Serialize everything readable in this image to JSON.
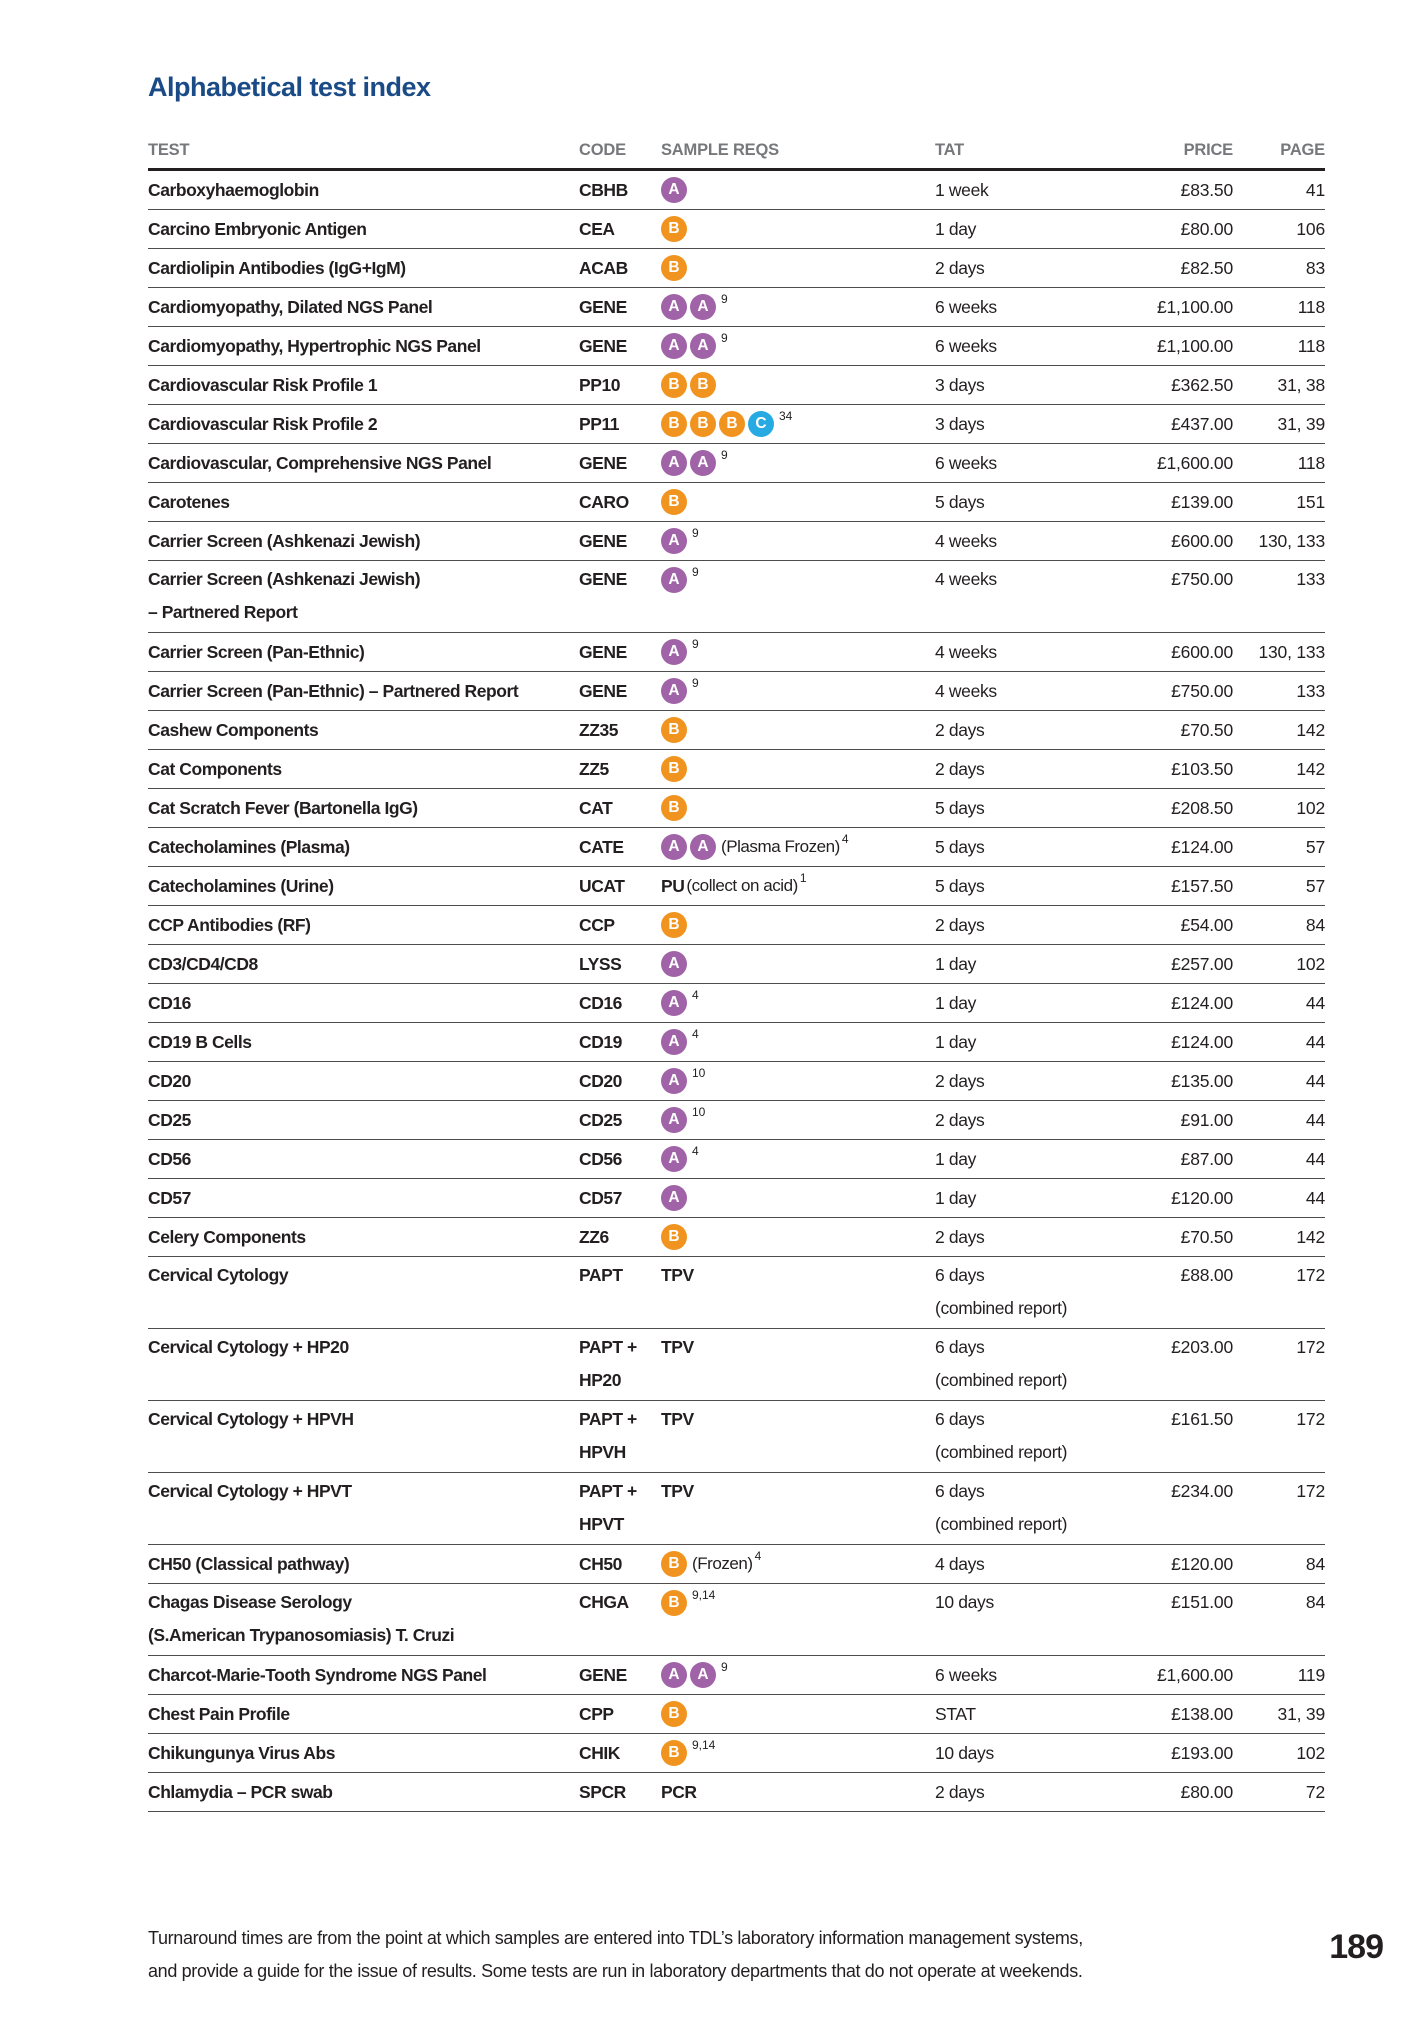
{
  "page": {
    "title": "Alphabetical test index",
    "page_number": "189",
    "footer_line1": "Turnaround times are from the point at which samples are entered into TDL’s laboratory information management systems,",
    "footer_line2": "and provide a guide for the issue of results. Some tests are run in laboratory departments that do not operate at weekends."
  },
  "colors": {
    "title_blue": "#1b4b86",
    "header_gray": "#77787b",
    "text_black": "#231f20",
    "badge_a": "#a163a8",
    "badge_b": "#f0931f",
    "badge_c": "#27aae1"
  },
  "table": {
    "headers": [
      "TEST",
      "CODE",
      "SAMPLE REQS",
      "TAT",
      "PRICE",
      "PAGE"
    ],
    "rows": [
      {
        "lines": 1,
        "test": [
          "Carboxyhaemoglobin"
        ],
        "code": [
          "CBHB"
        ],
        "sample": [
          {
            "badge": "A"
          }
        ],
        "tat": [
          "1 week"
        ],
        "price": "£83.50",
        "page": "41"
      },
      {
        "lines": 1,
        "test": [
          "Carcino Embryonic Antigen"
        ],
        "code": [
          "CEA"
        ],
        "sample": [
          {
            "badge": "B"
          }
        ],
        "tat": [
          "1 day"
        ],
        "price": "£80.00",
        "page": "106"
      },
      {
        "lines": 1,
        "test": [
          "Cardiolipin Antibodies (IgG+IgM)"
        ],
        "code": [
          "ACAB"
        ],
        "sample": [
          {
            "badge": "B"
          }
        ],
        "tat": [
          "2 days"
        ],
        "price": "£82.50",
        "page": "83"
      },
      {
        "lines": 1,
        "test": [
          "Cardiomyopathy, Dilated NGS Panel"
        ],
        "code": [
          "GENE"
        ],
        "sample": [
          {
            "badge": "A"
          },
          {
            "badge": "A"
          },
          {
            "sup": "9"
          }
        ],
        "tat": [
          "6 weeks"
        ],
        "price": "£1,100.00",
        "page": "118"
      },
      {
        "lines": 1,
        "test": [
          "Cardiomyopathy, Hypertrophic NGS Panel"
        ],
        "code": [
          "GENE"
        ],
        "sample": [
          {
            "badge": "A"
          },
          {
            "badge": "A"
          },
          {
            "sup": "9"
          }
        ],
        "tat": [
          "6 weeks"
        ],
        "price": "£1,100.00",
        "page": "118"
      },
      {
        "lines": 1,
        "test": [
          "Cardiovascular Risk Profile 1"
        ],
        "code": [
          "PP10"
        ],
        "sample": [
          {
            "badge": "B"
          },
          {
            "badge": "B"
          }
        ],
        "tat": [
          "3 days"
        ],
        "price": "£362.50",
        "page": "31, 38"
      },
      {
        "lines": 1,
        "test": [
          "Cardiovascular Risk Profile 2"
        ],
        "code": [
          "PP11"
        ],
        "sample": [
          {
            "badge": "B"
          },
          {
            "badge": "B"
          },
          {
            "badge": "B"
          },
          {
            "badge": "C"
          },
          {
            "sup": "34"
          }
        ],
        "tat": [
          "3 days"
        ],
        "price": "£437.00",
        "page": "31, 39"
      },
      {
        "lines": 1,
        "test": [
          "Cardiovascular, Comprehensive NGS Panel"
        ],
        "code": [
          "GENE"
        ],
        "sample": [
          {
            "badge": "A"
          },
          {
            "badge": "A"
          },
          {
            "sup": "9"
          }
        ],
        "tat": [
          "6 weeks"
        ],
        "price": "£1,600.00",
        "page": "118"
      },
      {
        "lines": 1,
        "test": [
          "Carotenes"
        ],
        "code": [
          "CARO"
        ],
        "sample": [
          {
            "badge": "B"
          }
        ],
        "tat": [
          "5 days"
        ],
        "price": "£139.00",
        "page": "151"
      },
      {
        "lines": 1,
        "test": [
          "Carrier Screen (Ashkenazi Jewish)"
        ],
        "code": [
          "GENE"
        ],
        "sample": [
          {
            "badge": "A"
          },
          {
            "sup": "9"
          }
        ],
        "tat": [
          "4 weeks"
        ],
        "price": "£600.00",
        "page": "130, 133"
      },
      {
        "lines": 2,
        "test": [
          "Carrier Screen (Ashkenazi Jewish)",
          "– Partnered Report"
        ],
        "code": [
          "GENE"
        ],
        "sample": [
          {
            "badge": "A"
          },
          {
            "sup": "9"
          }
        ],
        "tat": [
          "4 weeks"
        ],
        "price": "£750.00",
        "page": "133"
      },
      {
        "lines": 1,
        "test": [
          "Carrier Screen (Pan-Ethnic)"
        ],
        "code": [
          "GENE"
        ],
        "sample": [
          {
            "badge": "A"
          },
          {
            "sup": "9"
          }
        ],
        "tat": [
          "4 weeks"
        ],
        "price": "£600.00",
        "page": "130, 133"
      },
      {
        "lines": 1,
        "test": [
          "Carrier Screen (Pan-Ethnic) – Partnered Report"
        ],
        "code": [
          "GENE"
        ],
        "sample": [
          {
            "badge": "A"
          },
          {
            "sup": "9"
          }
        ],
        "tat": [
          "4 weeks"
        ],
        "price": "£750.00",
        "page": "133"
      },
      {
        "lines": 1,
        "test": [
          "Cashew Components"
        ],
        "code": [
          "ZZ35"
        ],
        "sample": [
          {
            "badge": "B"
          }
        ],
        "tat": [
          "2 days"
        ],
        "price": "£70.50",
        "page": "142"
      },
      {
        "lines": 1,
        "test": [
          "Cat Components"
        ],
        "code": [
          "ZZ5"
        ],
        "sample": [
          {
            "badge": "B"
          }
        ],
        "tat": [
          "2 days"
        ],
        "price": "£103.50",
        "page": "142"
      },
      {
        "lines": 1,
        "test": [
          "Cat Scratch Fever (Bartonella IgG)"
        ],
        "code": [
          "CAT"
        ],
        "sample": [
          {
            "badge": "B"
          }
        ],
        "tat": [
          "5 days"
        ],
        "price": "£208.50",
        "page": "102"
      },
      {
        "lines": 1,
        "test": [
          "Catecholamines (Plasma)"
        ],
        "code": [
          "CATE"
        ],
        "sample": [
          {
            "badge": "A"
          },
          {
            "badge": "A"
          },
          {
            "note": "(Plasma Frozen)"
          },
          {
            "sup": "4"
          }
        ],
        "tat": [
          "5 days"
        ],
        "price": "£124.00",
        "page": "57"
      },
      {
        "lines": 1,
        "test": [
          "Catecholamines (Urine)"
        ],
        "code": [
          "UCAT"
        ],
        "sample": [
          {
            "bold": "PU"
          },
          {
            "note": "(collect on acid)"
          },
          {
            "sup": "1"
          }
        ],
        "tat": [
          "5 days"
        ],
        "price": "£157.50",
        "page": "57"
      },
      {
        "lines": 1,
        "test": [
          "CCP Antibodies (RF)"
        ],
        "code": [
          "CCP"
        ],
        "sample": [
          {
            "badge": "B"
          }
        ],
        "tat": [
          "2 days"
        ],
        "price": "£54.00",
        "page": "84"
      },
      {
        "lines": 1,
        "test": [
          "CD3/CD4/CD8"
        ],
        "code": [
          "LYSS"
        ],
        "sample": [
          {
            "badge": "A"
          }
        ],
        "tat": [
          "1 day"
        ],
        "price": "£257.00",
        "page": "102"
      },
      {
        "lines": 1,
        "test": [
          "CD16"
        ],
        "code": [
          "CD16"
        ],
        "sample": [
          {
            "badge": "A"
          },
          {
            "sup": "4"
          }
        ],
        "tat": [
          "1 day"
        ],
        "price": "£124.00",
        "page": "44"
      },
      {
        "lines": 1,
        "test": [
          "CD19 B Cells"
        ],
        "code": [
          "CD19"
        ],
        "sample": [
          {
            "badge": "A"
          },
          {
            "sup": "4"
          }
        ],
        "tat": [
          "1 day"
        ],
        "price": "£124.00",
        "page": "44"
      },
      {
        "lines": 1,
        "test": [
          "CD20"
        ],
        "code": [
          "CD20"
        ],
        "sample": [
          {
            "badge": "A"
          },
          {
            "sup": "10"
          }
        ],
        "tat": [
          "2 days"
        ],
        "price": "£135.00",
        "page": "44"
      },
      {
        "lines": 1,
        "test": [
          "CD25"
        ],
        "code": [
          "CD25"
        ],
        "sample": [
          {
            "badge": "A"
          },
          {
            "sup": "10"
          }
        ],
        "tat": [
          "2 days"
        ],
        "price": "£91.00",
        "page": "44"
      },
      {
        "lines": 1,
        "test": [
          "CD56"
        ],
        "code": [
          "CD56"
        ],
        "sample": [
          {
            "badge": "A"
          },
          {
            "sup": "4"
          }
        ],
        "tat": [
          "1 day"
        ],
        "price": "£87.00",
        "page": "44"
      },
      {
        "lines": 1,
        "test": [
          "CD57"
        ],
        "code": [
          "CD57"
        ],
        "sample": [
          {
            "badge": "A"
          }
        ],
        "tat": [
          "1 day"
        ],
        "price": "£120.00",
        "page": "44"
      },
      {
        "lines": 1,
        "test": [
          "Celery Components"
        ],
        "code": [
          "ZZ6"
        ],
        "sample": [
          {
            "badge": "B"
          }
        ],
        "tat": [
          "2 days"
        ],
        "price": "£70.50",
        "page": "142"
      },
      {
        "lines": 2,
        "test": [
          "Cervical Cytology"
        ],
        "code": [
          "PAPT"
        ],
        "sample": [
          {
            "bold": "TPV"
          }
        ],
        "tat": [
          "6 days",
          "(combined report)"
        ],
        "price": "£88.00",
        "page": "172"
      },
      {
        "lines": 2,
        "test": [
          "Cervical Cytology + HP20"
        ],
        "code": [
          "PAPT +",
          "HP20"
        ],
        "sample": [
          {
            "bold": "TPV"
          }
        ],
        "tat": [
          "6 days",
          "(combined report)"
        ],
        "price": "£203.00",
        "page": "172"
      },
      {
        "lines": 2,
        "test": [
          "Cervical Cytology + HPVH"
        ],
        "code": [
          "PAPT +",
          "HPVH"
        ],
        "sample": [
          {
            "bold": "TPV"
          }
        ],
        "tat": [
          "6 days",
          "(combined report)"
        ],
        "price": "£161.50",
        "page": "172"
      },
      {
        "lines": 2,
        "test": [
          "Cervical Cytology + HPVT"
        ],
        "code": [
          "PAPT +",
          "HPVT"
        ],
        "sample": [
          {
            "bold": "TPV"
          }
        ],
        "tat": [
          "6 days",
          "(combined report)"
        ],
        "price": "£234.00",
        "page": "172"
      },
      {
        "lines": 1,
        "test": [
          "CH50 (Classical pathway)"
        ],
        "code": [
          "CH50"
        ],
        "sample": [
          {
            "badge": "B"
          },
          {
            "note": "(Frozen)"
          },
          {
            "sup": "4"
          }
        ],
        "tat": [
          "4 days"
        ],
        "price": "£120.00",
        "page": "84"
      },
      {
        "lines": 2,
        "test": [
          "Chagas Disease Serology",
          "(S.American Trypanosomiasis) T. Cruzi"
        ],
        "code": [
          "CHGA"
        ],
        "sample": [
          {
            "badge": "B"
          },
          {
            "sup": "9,14"
          }
        ],
        "tat": [
          "10 days"
        ],
        "price": "£151.00",
        "page": "84"
      },
      {
        "lines": 1,
        "test": [
          "Charcot-Marie-Tooth Syndrome NGS Panel"
        ],
        "code": [
          "GENE"
        ],
        "sample": [
          {
            "badge": "A"
          },
          {
            "badge": "A"
          },
          {
            "sup": "9"
          }
        ],
        "tat": [
          "6 weeks"
        ],
        "price": "£1,600.00",
        "page": "119"
      },
      {
        "lines": 1,
        "test": [
          "Chest Pain Profile"
        ],
        "code": [
          "CPP"
        ],
        "sample": [
          {
            "badge": "B"
          }
        ],
        "tat": [
          "STAT"
        ],
        "price": "£138.00",
        "page": "31, 39"
      },
      {
        "lines": 1,
        "test": [
          "Chikungunya Virus Abs"
        ],
        "code": [
          "CHIK"
        ],
        "sample": [
          {
            "badge": "B"
          },
          {
            "sup": "9,14"
          }
        ],
        "tat": [
          "10 days"
        ],
        "price": "£193.00",
        "page": "102"
      },
      {
        "lines": 1,
        "test": [
          "Chlamydia – PCR swab"
        ],
        "code": [
          "SPCR"
        ],
        "sample": [
          {
            "bold": "PCR"
          }
        ],
        "tat": [
          "2 days"
        ],
        "price": "£80.00",
        "page": "72"
      }
    ]
  }
}
